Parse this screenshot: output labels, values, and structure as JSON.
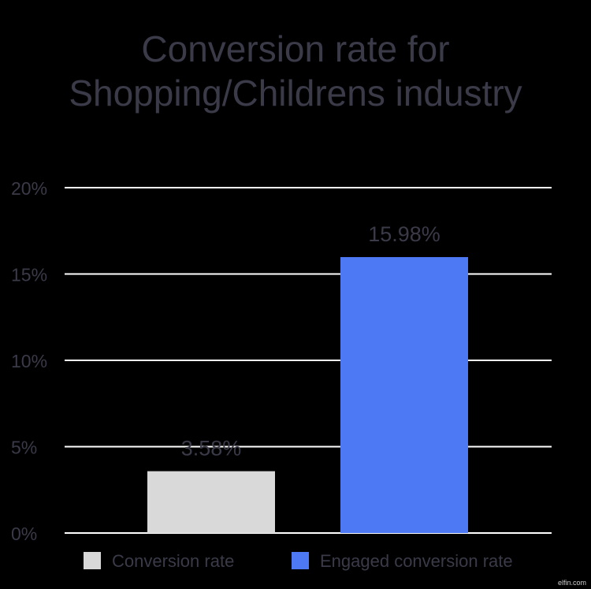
{
  "chart_data": {
    "type": "bar",
    "title_lines": [
      "Conversion rate for",
      "Shopping/Childrens industry"
    ],
    "categories": [
      "Conversion rate",
      "Engaged conversion rate"
    ],
    "values": [
      3.58,
      15.98
    ],
    "value_labels": [
      "3.58%",
      "15.98%"
    ],
    "colors": [
      "#d9d9d9",
      "#4e79f5"
    ],
    "ylim": [
      0,
      20
    ],
    "yticks": [
      0,
      5,
      10,
      15,
      20
    ],
    "ytick_labels": [
      "0%",
      "5%",
      "10%",
      "15%",
      "20%"
    ],
    "grid": true,
    "legend_position": "bottom",
    "gridline_color": "#ffffff",
    "text_color": "#3a3a48"
  },
  "watermark": "elfin.com"
}
